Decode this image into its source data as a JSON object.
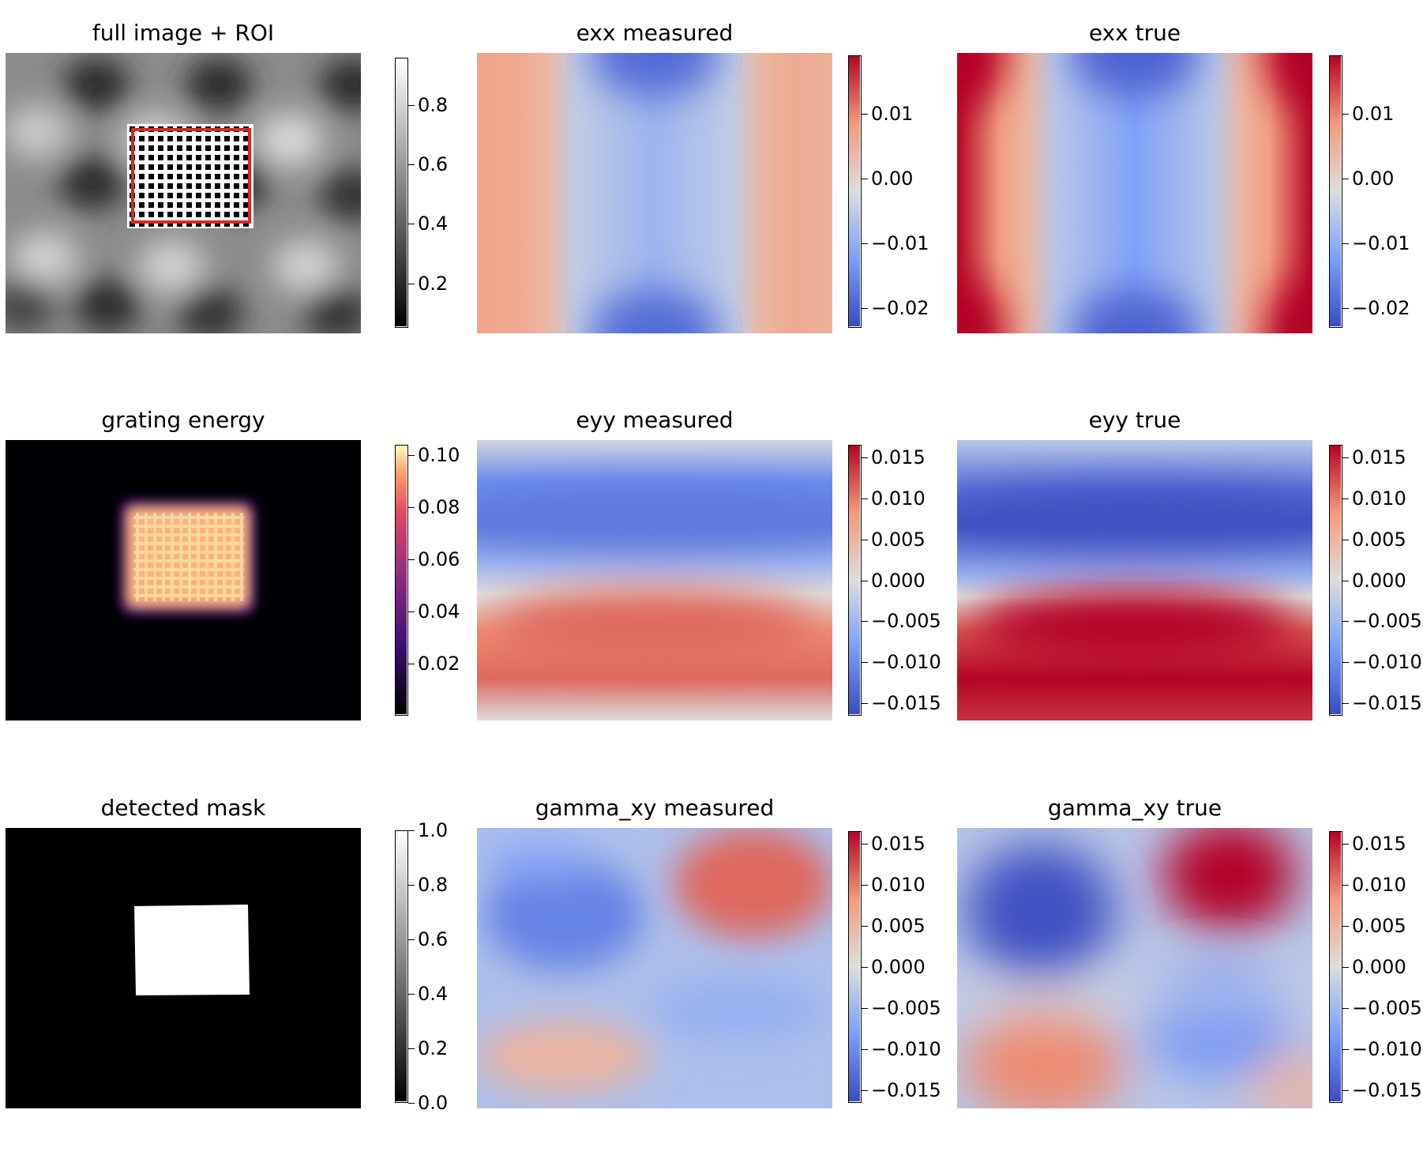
{
  "colors": {
    "coolwarm_low": "#3b4cc0",
    "coolwarm_mid": "#dddddd",
    "coolwarm_high": "#b40426",
    "roi_box": "#d62728"
  },
  "chart_data": [
    {
      "id": "full",
      "type": "heatmap",
      "title": "full image + ROI",
      "colormap": "gray",
      "clim": [
        0.05,
        0.96
      ],
      "colorbar_ticks": [
        0.2,
        0.4,
        0.6,
        0.8
      ],
      "colorbar_labels": [
        "0.2",
        "0.4",
        "0.6",
        "0.8"
      ]
    },
    {
      "id": "exx_m",
      "type": "heatmap",
      "title": "exx measured",
      "colormap": "coolwarm",
      "clim": [
        -0.023,
        0.019
      ],
      "colorbar_ticks": [
        0.01,
        0.0,
        -0.01,
        -0.02
      ],
      "colorbar_labels": [
        "0.01",
        "0.00",
        "−0.01",
        "−0.02"
      ]
    },
    {
      "id": "exx_t",
      "type": "heatmap",
      "title": "exx true",
      "colormap": "coolwarm",
      "clim": [
        -0.023,
        0.019
      ],
      "colorbar_ticks": [
        0.01,
        0.0,
        -0.01,
        -0.02
      ],
      "colorbar_labels": [
        "0.01",
        "0.00",
        "−0.01",
        "−0.02"
      ]
    },
    {
      "id": "energy",
      "type": "heatmap",
      "title": "grating energy",
      "colormap": "magma",
      "clim": [
        0.0,
        0.104
      ],
      "colorbar_ticks": [
        0.1,
        0.08,
        0.06,
        0.04,
        0.02
      ],
      "colorbar_labels": [
        "0.10",
        "0.08",
        "0.06",
        "0.04",
        "0.02"
      ]
    },
    {
      "id": "eyy_m",
      "type": "heatmap",
      "title": "eyy measured",
      "colormap": "coolwarm",
      "clim": [
        -0.0165,
        0.0165
      ],
      "colorbar_ticks": [
        0.015,
        0.01,
        0.005,
        0.0,
        -0.005,
        -0.01,
        -0.015
      ],
      "colorbar_labels": [
        "0.015",
        "0.010",
        "0.005",
        "0.000",
        "−0.005",
        "−0.010",
        "−0.015"
      ]
    },
    {
      "id": "eyy_t",
      "type": "heatmap",
      "title": "eyy true",
      "colormap": "coolwarm",
      "clim": [
        -0.0165,
        0.0165
      ],
      "colorbar_ticks": [
        0.015,
        0.01,
        0.005,
        0.0,
        -0.005,
        -0.01,
        -0.015
      ],
      "colorbar_labels": [
        "0.015",
        "0.010",
        "0.005",
        "0.000",
        "−0.005",
        "−0.010",
        "−0.015"
      ]
    },
    {
      "id": "mask",
      "type": "heatmap",
      "title": "detected mask",
      "colormap": "gray",
      "clim": [
        0.0,
        1.0
      ],
      "colorbar_ticks": [
        1.0,
        0.8,
        0.6,
        0.4,
        0.2,
        0.0
      ],
      "colorbar_labels": [
        "1.0",
        "0.8",
        "0.6",
        "0.4",
        "0.2",
        "0.0"
      ]
    },
    {
      "id": "gxy_m",
      "type": "heatmap",
      "title": "gamma_xy measured",
      "colormap": "coolwarm",
      "clim": [
        -0.0165,
        0.0165
      ],
      "colorbar_ticks": [
        0.015,
        0.01,
        0.005,
        0.0,
        -0.005,
        -0.01,
        -0.015
      ],
      "colorbar_labels": [
        "0.015",
        "0.010",
        "0.005",
        "0.000",
        "−0.005",
        "−0.010",
        "−0.015"
      ]
    },
    {
      "id": "gxy_t",
      "type": "heatmap",
      "title": "gamma_xy true",
      "colormap": "coolwarm",
      "clim": [
        -0.0165,
        0.0165
      ],
      "colorbar_ticks": [
        0.015,
        0.01,
        0.005,
        0.0,
        -0.005,
        -0.01,
        -0.015
      ],
      "colorbar_labels": [
        "0.015",
        "0.010",
        "0.005",
        "0.000",
        "−0.005",
        "−0.010",
        "−0.015"
      ]
    }
  ]
}
